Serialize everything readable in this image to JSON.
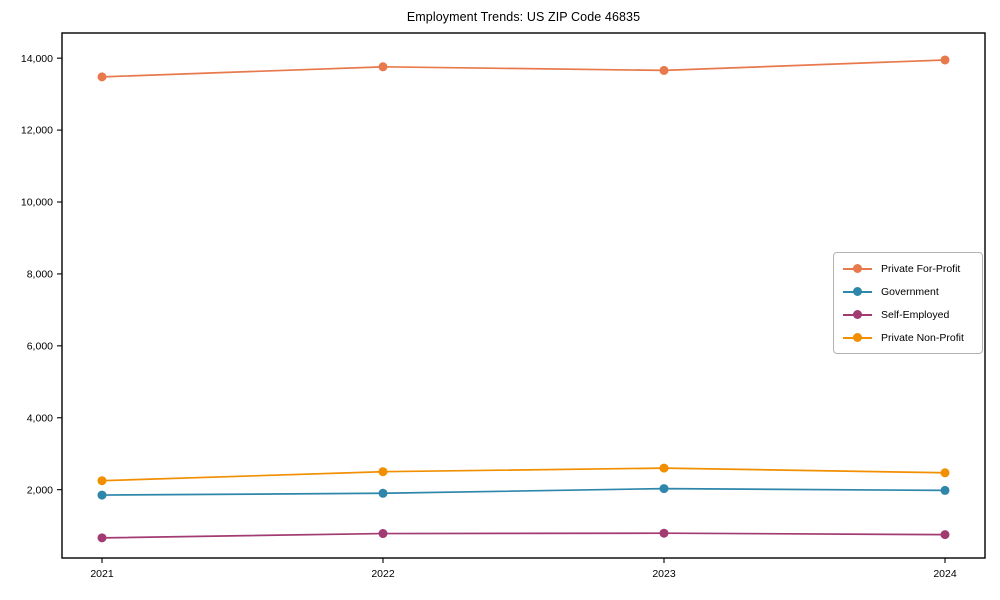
{
  "chart_data": {
    "type": "line",
    "title": "Employment Trends: US ZIP Code 46835",
    "categories": [
      "2021",
      "2022",
      "2023",
      "2024"
    ],
    "series": [
      {
        "name": "Private For-Profit",
        "color": "#E8794C",
        "values": [
          13480,
          13760,
          13660,
          13950
        ]
      },
      {
        "name": "Government",
        "color": "#2E86AB",
        "values": [
          1850,
          1900,
          2030,
          1980
        ]
      },
      {
        "name": "Self-Employed",
        "color": "#A23B72",
        "values": [
          660,
          780,
          790,
          750
        ]
      },
      {
        "name": "Private Non-Profit",
        "color": "#F18F01",
        "values": [
          2250,
          2500,
          2600,
          2470
        ]
      }
    ],
    "xlabel": "",
    "ylabel": "",
    "ylim": [
      100,
      14700
    ],
    "yticks": [
      2000,
      4000,
      6000,
      8000,
      10000,
      12000,
      14000
    ],
    "ytick_labels": [
      "2,000",
      "4,000",
      "6,000",
      "8,000",
      "10,000",
      "12,000",
      "14,000"
    ],
    "grid": false,
    "legend_position": "center-right"
  },
  "figure": {
    "background_color": "#ffffff",
    "axis_color": "#000000",
    "legend_border_color": "#b3b3b3"
  }
}
